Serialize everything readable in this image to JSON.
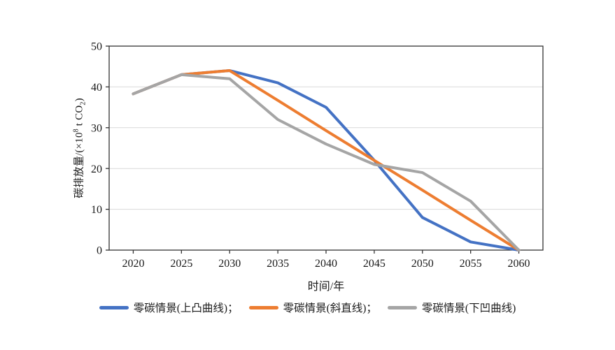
{
  "chart_data": {
    "type": "line",
    "title": "",
    "xlabel": "时间/年",
    "ylabel": "碳排放量/(×10⁸ t CO₂)",
    "ylabel_parts": {
      "prefix": "碳排放量/(×10",
      "superscript": "8",
      "middle": " t CO",
      "subscript": "2",
      "suffix": ")"
    },
    "categories": [
      "2020",
      "2025",
      "2030",
      "2035",
      "2040",
      "2045",
      "2050",
      "2055",
      "2060"
    ],
    "y_ticks": [
      0,
      10,
      20,
      30,
      40,
      50
    ],
    "ylim": [
      0,
      50
    ],
    "grid": "horizontal-light",
    "legend_position": "bottom",
    "series": [
      {
        "name": "零碳情景(上凸曲线)",
        "legend_label": "零碳情景(上凸曲线)；",
        "color": "#4472C4",
        "values": [
          38.3,
          43,
          44,
          41,
          35,
          22,
          8,
          2,
          0
        ]
      },
      {
        "name": "零碳情景(斜直线)",
        "legend_label": "零碳情景(斜直线)；",
        "color": "#ED7D31",
        "values": [
          38.3,
          43,
          44,
          36.7,
          29.3,
          22,
          14.7,
          7.3,
          0
        ]
      },
      {
        "name": "零碳情景(下凹曲线)",
        "legend_label": "零碳情景(下凹曲线)",
        "color": "#A5A5A5",
        "values": [
          38.3,
          43,
          42,
          32,
          26,
          21,
          19,
          12,
          0
        ]
      }
    ],
    "colors": {
      "frame": "#333333",
      "grid": "#d9d9d9",
      "text": "#1a1a1a",
      "background": "#ffffff"
    }
  }
}
